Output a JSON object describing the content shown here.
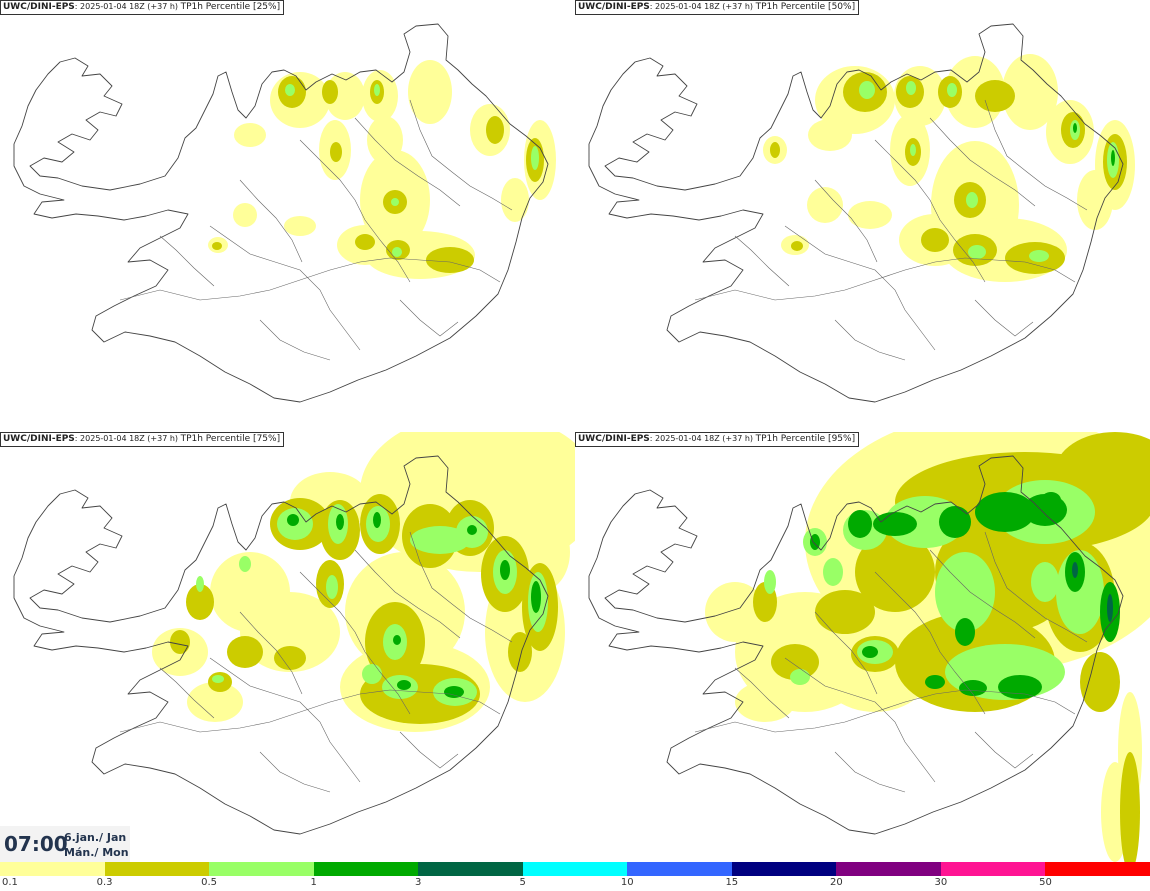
{
  "panels": [
    {
      "model": "UWC/DINI-EPS",
      "run": "2025-01-04 18Z (+37 h)",
      "desc": "TP1h Percentile [25%]"
    },
    {
      "model": "UWC/DINI-EPS",
      "run": "2025-01-04 18Z (+37 h)",
      "desc": "TP1h Percentile [50%]"
    },
    {
      "model": "UWC/DINI-EPS",
      "run": "2025-01-04 18Z (+37 h)",
      "desc": "TP1h Percentile [75%]"
    },
    {
      "model": "UWC/DINI-EPS",
      "run": "2025-01-04 18Z (+37 h)",
      "desc": "TP1h Percentile [95%]"
    }
  ],
  "valid_time": {
    "time": "07:00",
    "date": "6.jan./ Jan",
    "day": "Mán./ Mon"
  },
  "legend": {
    "labels": [
      "0.1",
      "0.3",
      "0.5",
      "1",
      "3",
      "5",
      "10",
      "15",
      "20",
      "30",
      "50"
    ],
    "colors": [
      "#ffff99",
      "#cccc00",
      "#99ff66",
      "#00aa00",
      "#006644",
      "#00ffff",
      "#3366ff",
      "#000080",
      "#800080",
      "#ff1493",
      "#ff0000"
    ]
  },
  "palette": {
    "light_yellow": "#ffff99",
    "olive": "#cccc00",
    "light_green": "#99ff66",
    "green": "#00aa00",
    "coast": "#444444"
  }
}
